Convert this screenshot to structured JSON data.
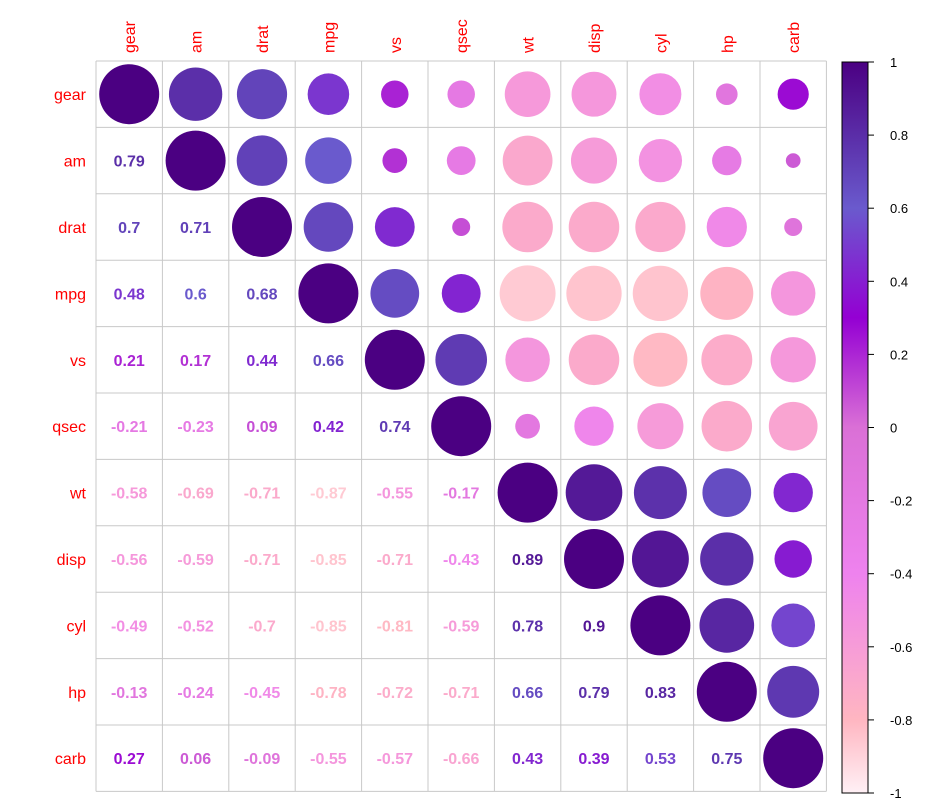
{
  "chart_data": {
    "type": "heatmap",
    "variables": [
      "gear",
      "am",
      "drat",
      "mpg",
      "vs",
      "qsec",
      "wt",
      "disp",
      "cyl",
      "hp",
      "carb"
    ],
    "matrix": [
      [
        1,
        0.79,
        0.7,
        0.48,
        0.21,
        -0.21,
        -0.58,
        -0.56,
        -0.49,
        -0.13,
        0.27
      ],
      [
        0.79,
        1,
        0.71,
        0.6,
        0.17,
        -0.23,
        -0.69,
        -0.59,
        -0.52,
        -0.24,
        0.06
      ],
      [
        0.7,
        0.71,
        1,
        0.68,
        0.44,
        0.09,
        -0.71,
        -0.71,
        -0.7,
        -0.45,
        -0.09
      ],
      [
        0.48,
        0.6,
        0.68,
        1,
        0.66,
        0.42,
        -0.87,
        -0.85,
        -0.85,
        -0.78,
        -0.55
      ],
      [
        0.21,
        0.17,
        0.44,
        0.66,
        1,
        0.74,
        -0.55,
        -0.71,
        -0.81,
        -0.72,
        -0.57
      ],
      [
        -0.21,
        -0.23,
        0.09,
        0.42,
        0.74,
        1,
        -0.17,
        -0.43,
        -0.59,
        -0.71,
        -0.66
      ],
      [
        -0.58,
        -0.69,
        -0.71,
        -0.87,
        -0.55,
        -0.17,
        1,
        0.89,
        0.78,
        0.66,
        0.43
      ],
      [
        -0.56,
        -0.59,
        -0.71,
        -0.85,
        -0.71,
        -0.43,
        0.89,
        1,
        0.9,
        0.79,
        0.39
      ],
      [
        -0.49,
        -0.52,
        -0.7,
        -0.85,
        -0.81,
        -0.59,
        0.78,
        0.9,
        1,
        0.83,
        0.53
      ],
      [
        -0.13,
        -0.24,
        -0.45,
        -0.78,
        -0.72,
        -0.71,
        0.66,
        0.79,
        0.83,
        1,
        0.75
      ],
      [
        0.27,
        0.06,
        -0.09,
        -0.55,
        -0.57,
        -0.66,
        0.43,
        0.39,
        0.53,
        0.75,
        1
      ]
    ],
    "upper_method": "circle",
    "lower_method": "number",
    "diagonal": "circle",
    "color_scale": {
      "range": [
        -1,
        1
      ],
      "stops": [
        {
          "value": -1,
          "color": "#FFF0F5"
        },
        {
          "value": -0.8,
          "color": "#FFB6C1"
        },
        {
          "value": -0.4,
          "color": "#EE82EE"
        },
        {
          "value": 0,
          "color": "#DA70D6"
        },
        {
          "value": 0.3,
          "color": "#9400D3"
        },
        {
          "value": 0.6,
          "color": "#6A5ACD"
        },
        {
          "value": 1,
          "color": "#4B0082"
        }
      ]
    },
    "legend": {
      "position": "right",
      "ticks": [
        "1",
        "0.8",
        "0.6",
        "0.4",
        "0.2",
        "0",
        "-0.2",
        "-0.4",
        "-0.6",
        "-0.8",
        "-1"
      ]
    },
    "grid": true,
    "label_color": "#ff0000"
  }
}
